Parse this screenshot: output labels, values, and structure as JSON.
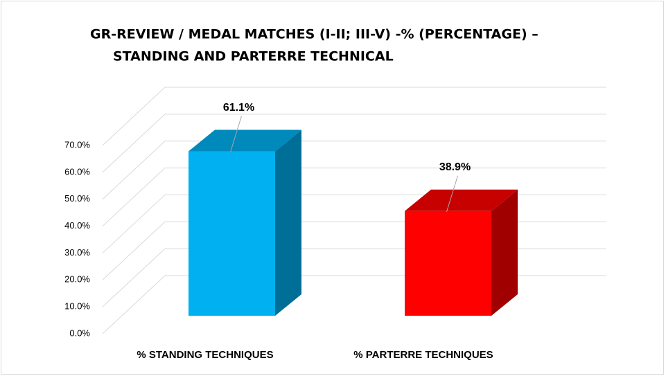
{
  "chart_data": {
    "type": "bar3d",
    "title": [
      "GR-REVIEW / MEDAL MATCHES (I-II; III-V) -% (PERCENTAGE) –",
      "STANDING AND PARTERRE TECHNICAL"
    ],
    "categories": [
      "% STANDING TECHNIQUES",
      "% PARTERRE TECHNIQUES"
    ],
    "values": [
      61.1,
      38.9
    ],
    "value_labels": [
      "61.1%",
      "38.9%"
    ],
    "colors": [
      "#00b0f0",
      "#ff0000"
    ],
    "ylim": [
      0,
      70
    ],
    "yticks": [
      {
        "value": 0,
        "label": "0.0%"
      },
      {
        "value": 10,
        "label": "10.0%"
      },
      {
        "value": 20,
        "label": "20.0%"
      },
      {
        "value": 30,
        "label": "30.0%"
      },
      {
        "value": 40,
        "label": "40.0%"
      },
      {
        "value": 50,
        "label": "50.0%"
      },
      {
        "value": 60,
        "label": "60.0%"
      },
      {
        "value": 70,
        "label": "70.0%"
      }
    ],
    "grid": true
  }
}
